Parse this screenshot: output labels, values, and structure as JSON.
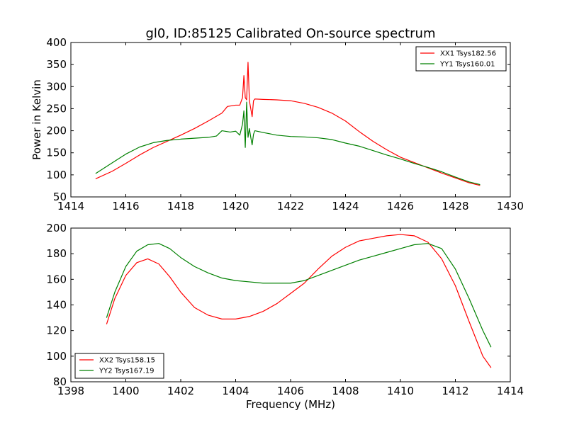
{
  "figure": {
    "title": "gl0, ID:85125 Calibrated On-source spectrum",
    "ylabel": "Power in Kelvin",
    "xlabel": "Frequency (MHz)"
  },
  "colors": {
    "series1": "#ff0000",
    "series2": "#008000"
  },
  "chart_data": [
    {
      "type": "line",
      "title": "gl0, ID:85125 Calibrated On-source spectrum",
      "xlabel": "",
      "ylabel": "Power in Kelvin",
      "xlim": [
        1414,
        1430
      ],
      "ylim": [
        50,
        400
      ],
      "xticks": [
        1414,
        1416,
        1418,
        1420,
        1422,
        1424,
        1426,
        1428,
        1430
      ],
      "yticks": [
        50,
        100,
        150,
        200,
        250,
        300,
        350,
        400
      ],
      "grid": false,
      "legend": "top-right",
      "series": [
        {
          "name": "XX1 Tsys182.56",
          "color": "#ff0000",
          "x": [
            1414.9,
            1415.5,
            1416,
            1416.5,
            1417,
            1417.5,
            1418,
            1418.5,
            1419,
            1419.5,
            1419.7,
            1420,
            1420.15,
            1420.25,
            1420.3,
            1420.35,
            1420.4,
            1420.45,
            1420.5,
            1420.55,
            1420.6,
            1420.65,
            1420.7,
            1421,
            1421.5,
            1422,
            1422.5,
            1423,
            1423.5,
            1424,
            1424.5,
            1425,
            1425.5,
            1426,
            1426.5,
            1427,
            1427.5,
            1428,
            1428.5,
            1428.9
          ],
          "y": [
            91,
            108,
            126,
            145,
            162,
            176,
            190,
            205,
            222,
            240,
            255,
            258,
            258,
            275,
            325,
            275,
            270,
            355,
            268,
            250,
            232,
            268,
            272,
            271,
            270,
            268,
            262,
            253,
            240,
            222,
            198,
            176,
            157,
            140,
            128,
            116,
            104,
            93,
            82,
            76
          ]
        },
        {
          "name": "YY1 Tsys160.01",
          "color": "#008000",
          "x": [
            1414.9,
            1415.5,
            1416,
            1416.5,
            1417,
            1417.5,
            1418,
            1418.5,
            1419,
            1419.3,
            1419.5,
            1419.8,
            1420,
            1420.15,
            1420.25,
            1420.3,
            1420.35,
            1420.4,
            1420.45,
            1420.5,
            1420.55,
            1420.6,
            1420.65,
            1420.7,
            1421,
            1421.5,
            1422,
            1422.5,
            1423,
            1423.5,
            1424,
            1424.5,
            1425,
            1425.5,
            1426,
            1426.5,
            1427,
            1427.5,
            1428,
            1428.5,
            1428.9
          ],
          "y": [
            103,
            127,
            147,
            163,
            173,
            178,
            181,
            183,
            185,
            188,
            200,
            197,
            199,
            190,
            215,
            245,
            162,
            265,
            185,
            205,
            185,
            168,
            192,
            200,
            196,
            190,
            187,
            186,
            184,
            180,
            172,
            165,
            155,
            145,
            136,
            126,
            117,
            107,
            95,
            84,
            78
          ]
        }
      ]
    },
    {
      "type": "line",
      "title": "",
      "xlabel": "Frequency (MHz)",
      "ylabel": "",
      "xlim": [
        1398,
        1414
      ],
      "ylim": [
        80,
        200
      ],
      "xticks": [
        1398,
        1400,
        1402,
        1404,
        1406,
        1408,
        1410,
        1412,
        1414
      ],
      "yticks": [
        80,
        100,
        120,
        140,
        160,
        180,
        200
      ],
      "grid": false,
      "legend": "bottom-left",
      "series": [
        {
          "name": "XX2 Tsys158.15",
          "color": "#ff0000",
          "x": [
            1399.3,
            1399.6,
            1400,
            1400.4,
            1400.8,
            1401.2,
            1401.6,
            1402,
            1402.5,
            1403,
            1403.5,
            1404,
            1404.5,
            1405,
            1405.5,
            1406,
            1406.5,
            1407,
            1407.5,
            1408,
            1408.5,
            1409,
            1409.5,
            1410,
            1410.5,
            1411,
            1411.5,
            1412,
            1412.5,
            1413,
            1413.3
          ],
          "y": [
            125,
            145,
            163,
            173,
            176,
            172,
            162,
            150,
            138,
            132,
            129,
            129,
            131,
            135,
            141,
            149,
            157,
            168,
            178,
            185,
            190,
            192,
            194,
            195,
            194,
            189,
            176,
            155,
            127,
            100,
            91
          ]
        },
        {
          "name": "YY2 Tsys167.19",
          "color": "#008000",
          "x": [
            1399.3,
            1399.6,
            1400,
            1400.4,
            1400.8,
            1401.2,
            1401.6,
            1402,
            1402.5,
            1403,
            1403.5,
            1404,
            1404.5,
            1405,
            1405.5,
            1406,
            1406.5,
            1407,
            1407.5,
            1408,
            1408.5,
            1409,
            1409.5,
            1410,
            1410.5,
            1411,
            1411.5,
            1412,
            1412.5,
            1413,
            1413.3
          ],
          "y": [
            130,
            150,
            170,
            182,
            187,
            188,
            184,
            177,
            170,
            165,
            161,
            159,
            158,
            157,
            157,
            157,
            159,
            163,
            167,
            171,
            175,
            178,
            181,
            184,
            187,
            188,
            184,
            168,
            145,
            120,
            107
          ]
        }
      ]
    }
  ]
}
